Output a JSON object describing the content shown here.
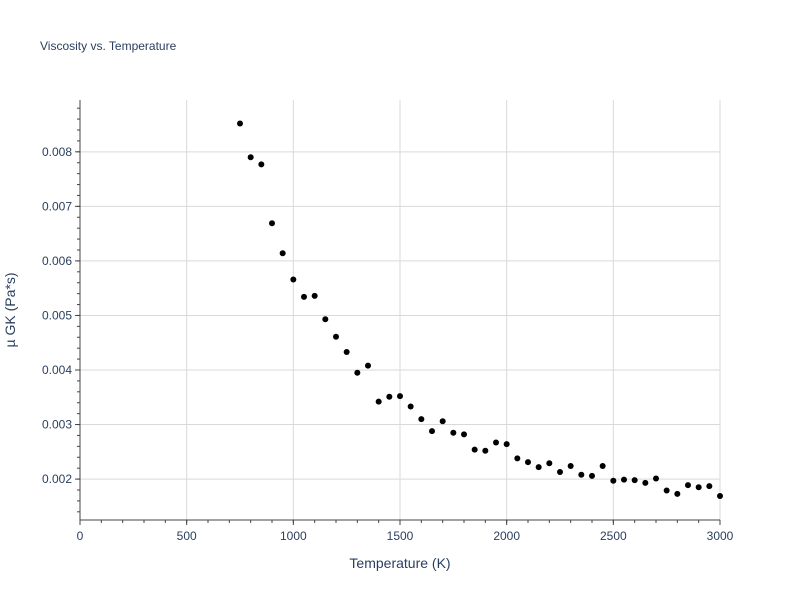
{
  "chart_data": {
    "type": "scatter",
    "title": "Viscosity vs. Temperature",
    "xlabel": "Temperature (K)",
    "ylabel": "µ GK (Pa*s)",
    "xlim": [
      0,
      3000
    ],
    "ylim": [
      0.00125,
      0.00895
    ],
    "xticks": [
      0,
      500,
      1000,
      1500,
      2000,
      2500,
      3000
    ],
    "xtick_labels": [
      "0",
      "500",
      "1000",
      "1500",
      "2000",
      "2500",
      "3000"
    ],
    "yticks": [
      0.002,
      0.003,
      0.004,
      0.005,
      0.006,
      0.007,
      0.008
    ],
    "ytick_labels": [
      "0.002",
      "0.003",
      "0.004",
      "0.005",
      "0.006",
      "0.007",
      "0.008"
    ],
    "grid": true,
    "marker_color": "#000000",
    "series": [
      {
        "x": [
          750,
          800,
          850,
          900,
          950,
          1000,
          1050,
          1100,
          1150,
          1200,
          1250,
          1300,
          1350,
          1400,
          1450,
          1500,
          1550,
          1600,
          1650,
          1700,
          1750,
          1800,
          1850,
          1900,
          1950,
          2000,
          2050,
          2100,
          2150,
          2200,
          2250,
          2300,
          2350,
          2400,
          2450,
          2500,
          2550,
          2600,
          2650,
          2700,
          2750,
          2800,
          2850,
          2900,
          2950,
          3000
        ],
        "y": [
          0.00852,
          0.0079,
          0.00777,
          0.00669,
          0.00614,
          0.00566,
          0.00534,
          0.00536,
          0.00493,
          0.00461,
          0.00433,
          0.00395,
          0.00408,
          0.00342,
          0.00351,
          0.00352,
          0.00333,
          0.0031,
          0.00288,
          0.00306,
          0.00285,
          0.00282,
          0.00254,
          0.00252,
          0.00267,
          0.00264,
          0.00238,
          0.00231,
          0.00222,
          0.00229,
          0.00213,
          0.00224,
          0.00208,
          0.00206,
          0.00224,
          0.00197,
          0.00199,
          0.00198,
          0.00193,
          0.00201,
          0.00179,
          0.00173,
          0.00189,
          0.00185,
          0.00187,
          0.00169
        ]
      }
    ]
  }
}
